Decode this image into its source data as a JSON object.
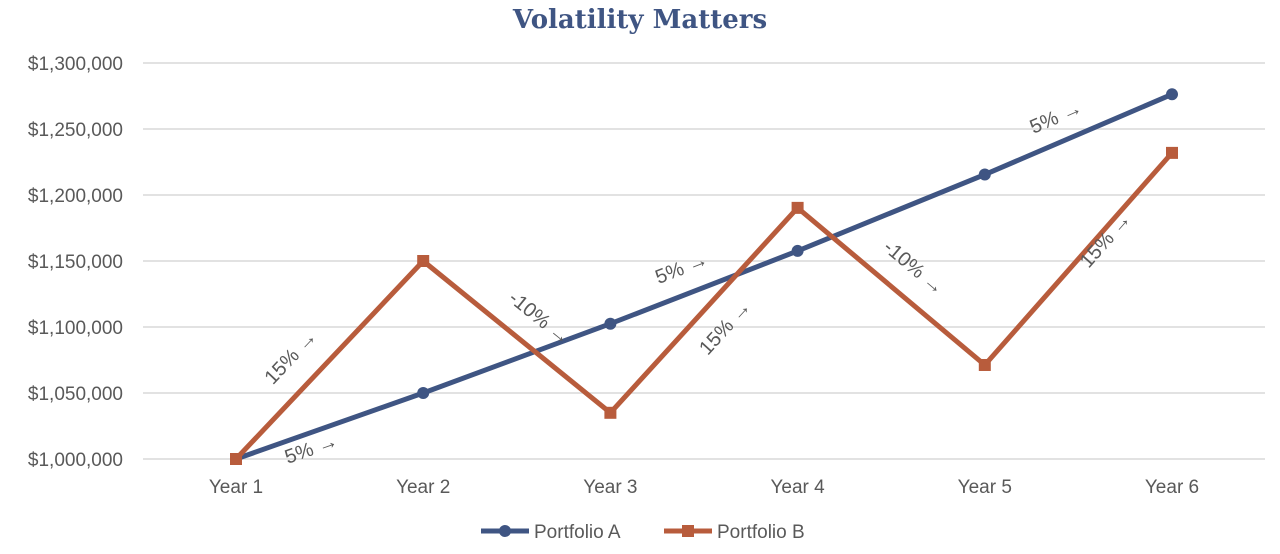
{
  "chart_data": {
    "type": "line",
    "title": "Volatility Matters",
    "categories": [
      "Year 1",
      "Year 2",
      "Year 3",
      "Year 4",
      "Year 5",
      "Year 6"
    ],
    "ylim": [
      1000000,
      1300000
    ],
    "yticks": [
      1000000,
      1050000,
      1100000,
      1150000,
      1200000,
      1250000,
      1300000
    ],
    "ytick_labels": [
      "$1,000,000",
      "$1,050,000",
      "$1,100,000",
      "$1,150,000",
      "$1,200,000",
      "$1,250,000",
      "$1,300,000"
    ],
    "grid": true,
    "legend_position": "bottom",
    "series": [
      {
        "name": "Portfolio A",
        "color": "#3F5583",
        "marker": "circle",
        "values": [
          1000000,
          1050000,
          1102500,
          1157625,
          1215506,
          1276282
        ]
      },
      {
        "name": "Portfolio B",
        "color": "#B85C3C",
        "marker": "square",
        "values": [
          1000000,
          1150000,
          1035000,
          1190250,
          1071225,
          1231909
        ]
      }
    ],
    "annotations": [
      {
        "text": "5% →",
        "series": 0,
        "segment": 0
      },
      {
        "text": "15% →",
        "series": 1,
        "segment": 0
      },
      {
        "text": "-10% →",
        "series": 1,
        "segment": 1
      },
      {
        "text": "5% →",
        "series": 0,
        "segment": 2
      },
      {
        "text": "15% →",
        "series": 1,
        "segment": 2
      },
      {
        "text": "-10% →",
        "series": 1,
        "segment": 3
      },
      {
        "text": "5% →",
        "series": 0,
        "segment": 4
      },
      {
        "text": "15% →",
        "series": 1,
        "segment": 4
      }
    ]
  }
}
